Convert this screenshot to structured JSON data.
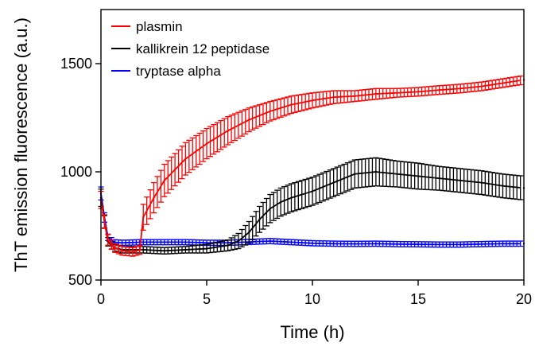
{
  "chart_data": {
    "type": "line",
    "title": "",
    "xlabel": "Time (h)",
    "ylabel": "ThT emission fluorescence (a.u.)",
    "xlim": [
      0,
      20
    ],
    "ylim": [
      500,
      1750
    ],
    "xticks": [
      0,
      5,
      10,
      15,
      20
    ],
    "yticks": [
      500,
      1000,
      1500
    ],
    "grid": false,
    "legend_position": "top-left",
    "error_bars": true,
    "series": [
      {
        "name": "plasmin",
        "color": "#ff0000",
        "x": [
          0,
          0.3,
          0.6,
          1,
          1.5,
          1.9,
          2,
          2.5,
          3,
          3.5,
          4,
          5,
          6,
          7,
          8,
          9,
          10,
          11,
          12,
          13,
          14,
          15,
          16,
          17,
          18,
          19,
          20
        ],
        "y": [
          870,
          690,
          650,
          635,
          630,
          640,
          790,
          880,
          960,
          1010,
          1060,
          1130,
          1190,
          1240,
          1280,
          1310,
          1330,
          1345,
          1350,
          1360,
          1365,
          1370,
          1378,
          1385,
          1395,
          1410,
          1425
        ],
        "err": [
          40,
          25,
          20,
          20,
          20,
          20,
          60,
          70,
          75,
          75,
          75,
          70,
          65,
          55,
          45,
          40,
          35,
          30,
          25,
          25,
          20,
          20,
          20,
          20,
          20,
          20,
          20
        ]
      },
      {
        "name": "kallikrein 12 peptidase",
        "color": "#000000",
        "x": [
          0,
          0.3,
          0.6,
          1,
          2,
          3,
          4,
          5,
          6,
          6.5,
          7,
          7.5,
          8,
          8.5,
          9,
          10,
          11,
          12,
          13,
          14,
          15,
          16,
          17,
          18,
          19,
          20
        ],
        "y": [
          880,
          680,
          650,
          640,
          640,
          635,
          640,
          645,
          660,
          680,
          720,
          780,
          830,
          860,
          880,
          910,
          950,
          990,
          1000,
          990,
          980,
          970,
          960,
          950,
          935,
          925
        ],
        "err": [
          40,
          20,
          15,
          15,
          15,
          15,
          15,
          20,
          25,
          35,
          50,
          60,
          65,
          65,
          65,
          65,
          65,
          65,
          65,
          60,
          60,
          55,
          55,
          55,
          55,
          55
        ]
      },
      {
        "name": "tryptase alpha",
        "color": "#0000ff",
        "x": [
          0,
          0.3,
          0.6,
          1,
          2,
          3,
          4,
          5,
          6,
          7,
          8,
          9,
          10,
          11,
          12,
          13,
          14,
          15,
          16,
          17,
          18,
          19,
          20
        ],
        "y": [
          900,
          700,
          675,
          672,
          675,
          675,
          675,
          672,
          672,
          676,
          680,
          675,
          670,
          668,
          667,
          668,
          666,
          665,
          664,
          664,
          666,
          668,
          668
        ],
        "err": [
          30,
          15,
          12,
          12,
          12,
          12,
          12,
          12,
          12,
          12,
          12,
          12,
          12,
          12,
          12,
          12,
          12,
          12,
          12,
          12,
          12,
          12,
          12
        ]
      }
    ]
  }
}
